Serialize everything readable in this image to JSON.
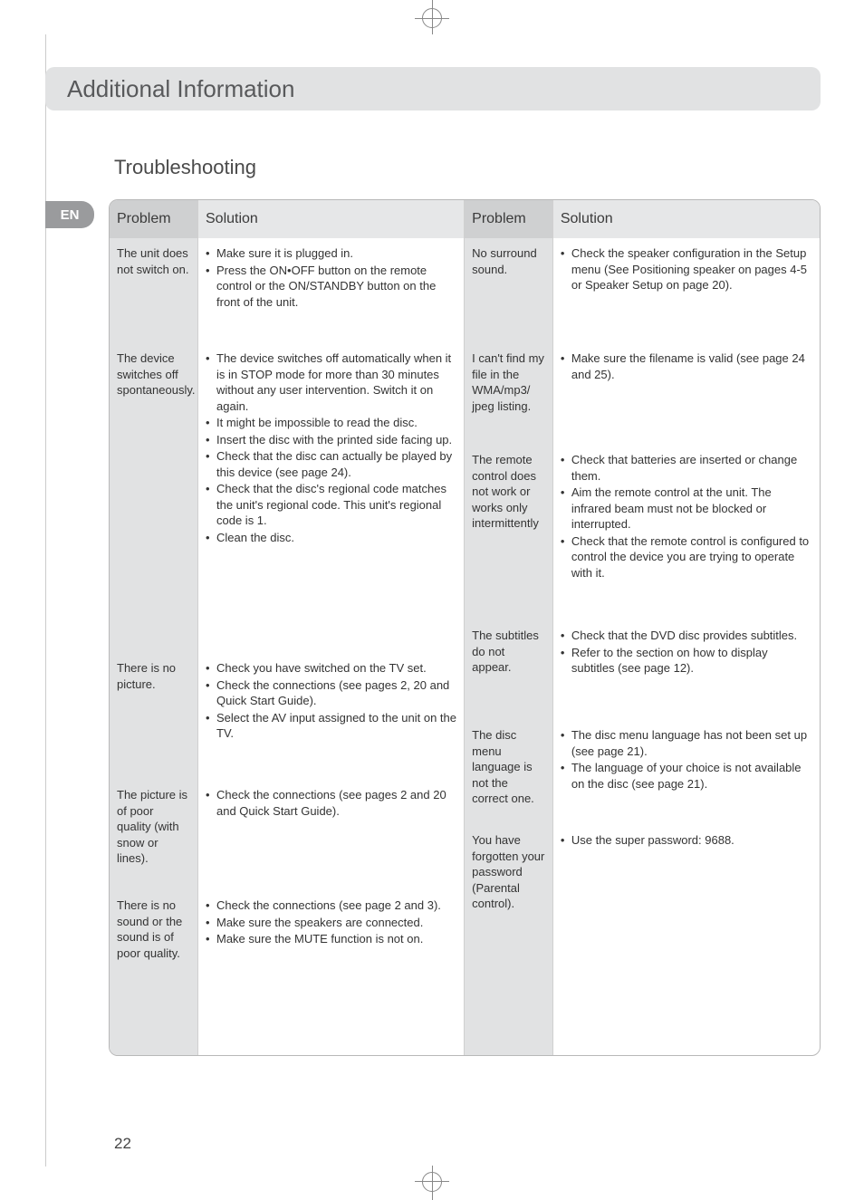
{
  "meta": {
    "page_number": "22",
    "colors": {
      "header_bg": "#e1e2e3",
      "header_text": "#58595b",
      "lang_pill_bg": "#9a9b9d",
      "lang_text": "#ffffff",
      "table_border": "#b8b8b8",
      "col_head_problem_bg": "#cfd0d1",
      "col_head_solution_bg": "#e6e7e8",
      "problem_col_bg": "#e1e2e3",
      "solution_col_bg": "#ffffff",
      "body_text": "#333333"
    },
    "fonts": {
      "header_size": 26,
      "section_size": 22,
      "table_head_size": 16,
      "body_size": 13
    }
  },
  "header": {
    "title": "Additional Information"
  },
  "section": {
    "title": "Troubleshooting"
  },
  "lang_badge": "EN",
  "table": {
    "headers": {
      "problem": "Problem",
      "solution": "Solution"
    },
    "left": [
      {
        "problem": "The unit does not switch on.",
        "solutions": [
          "Make sure it is plugged in.",
          "Press the ON•OFF button on the remote control or the ON/STANDBY button on the front of the unit."
        ]
      },
      {
        "problem": "The device switches off spontaneously.",
        "solutions": [
          "The device switches off automatically when it is in STOP mode for more than 30 minutes without any user intervention. Switch it on again.",
          "It might be impossible to read the disc.",
          "Insert the disc with the printed side facing up.",
          "Check that the disc can actually be played by this device (see page 24).",
          "Check that the disc's regional code matches the unit's regional code. This unit's regional code is 1.",
          "Clean the disc."
        ]
      },
      {
        "problem": "There is no picture.",
        "solutions": [
          "Check you have switched on the TV set.",
          "Check the connections (see pages 2, 20 and Quick Start Guide).",
          "Select the AV input assigned to the unit on the TV."
        ]
      },
      {
        "problem": "The picture is of poor quality (with snow or lines).",
        "solutions": [
          "Check the connections (see pages 2 and 20 and Quick Start Guide)."
        ]
      },
      {
        "problem": "There is no sound or the sound is of poor quality.",
        "solutions": [
          "Check the connections (see page 2 and 3).",
          "Make sure the speakers are connected.",
          "Make sure the MUTE function is not on."
        ]
      }
    ],
    "right": [
      {
        "problem": "No surround sound.",
        "solutions": [
          "Check the speaker configuration in the Setup menu (See Positioning speaker on pages 4-5 or Speaker Setup on page 20)."
        ]
      },
      {
        "problem": "I can't find my file in the WMA/mp3/ jpeg listing.",
        "solutions": [
          "Make sure the filename is valid (see page 24 and 25)."
        ]
      },
      {
        "problem": "The remote control does not work or works only intermittently",
        "solutions": [
          "Check that batteries are inserted or change them.",
          "Aim the remote control at the unit. The infrared beam must not be blocked or interrupted.",
          "Check that the remote control is configured to control the device you are trying to operate with it."
        ]
      },
      {
        "problem": "The subtitles do not appear.",
        "solutions": [
          "Check that the DVD disc provides subtitles.",
          "Refer to the section on how to display subtitles (see page 12)."
        ]
      },
      {
        "problem": "The disc menu language is not the correct one.",
        "solutions": [
          "The disc menu language has not been set up (see page 21).",
          "The language of your choice is not available on the disc (see page 21)."
        ]
      },
      {
        "problem": "You have forgotten your password (Parental control).",
        "solutions": [
          "Use the super password: 9688."
        ]
      }
    ]
  }
}
